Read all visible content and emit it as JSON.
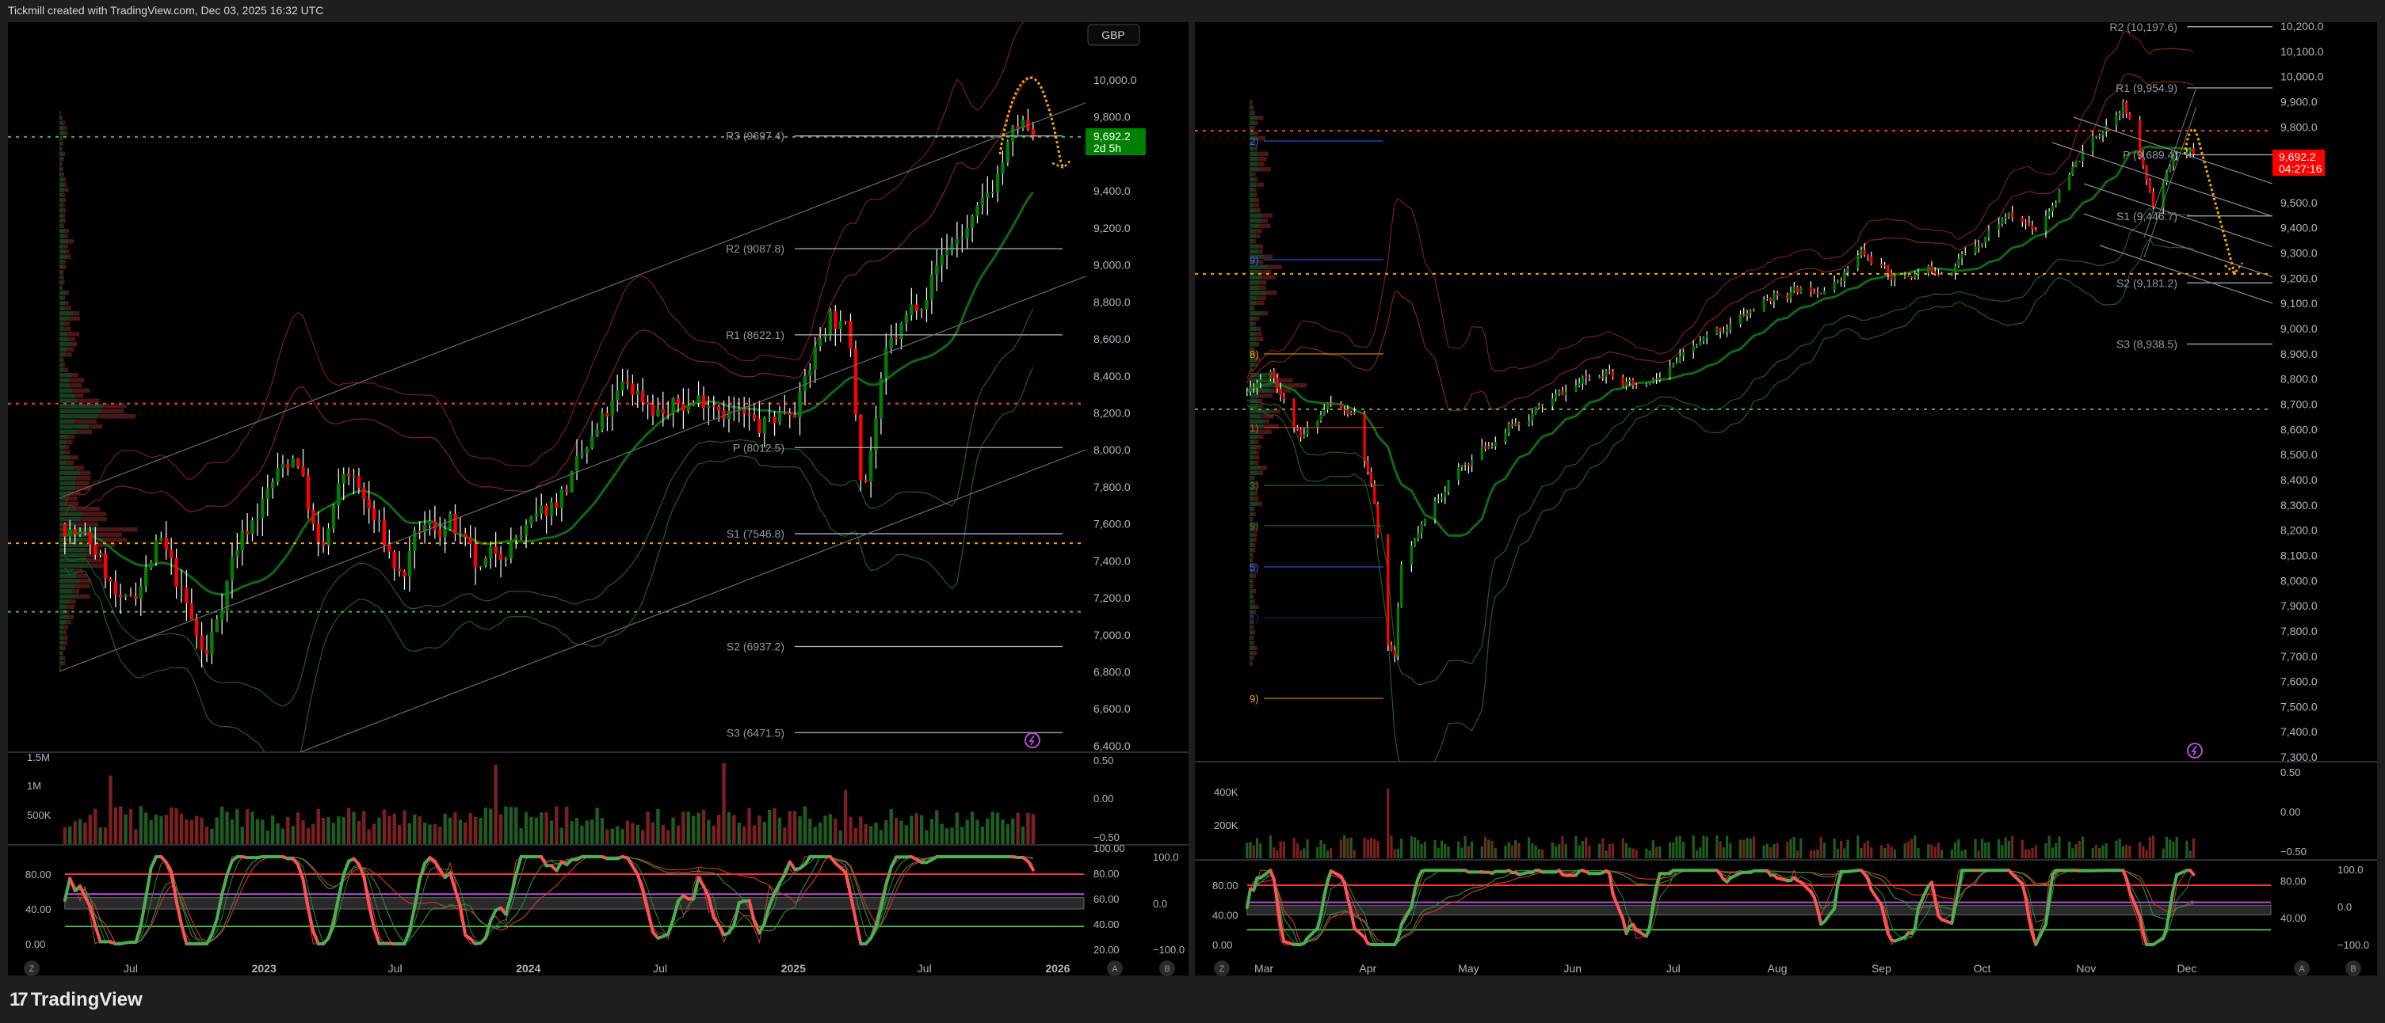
{
  "header": {
    "attribution": "Tickmill created with TradingView.com, Dec 03, 2025 16:32 UTC"
  },
  "footer": {
    "logo_text": "TradingView"
  },
  "scale_buttons": {
    "z": "Z",
    "a": "A",
    "b": "B"
  },
  "colors": {
    "up": "#008000",
    "down": "#ff0000",
    "background": "#000000",
    "frame": "#1e1e1e",
    "pivot_line": "#b2b5be",
    "forecast": "#ffa500",
    "osc_up": "#4caf50",
    "osc_down": "#ff5252"
  },
  "charts": [
    {
      "id": "weekly",
      "currency": "GBP",
      "last_price": "9,692.2",
      "countdown": "2d 5h",
      "badge_color": "#008000",
      "price_axis": [
        "10,000.0",
        "9,800.0",
        "9,400.0",
        "9,200.0",
        "9,000.0",
        "8,800.0",
        "8,600.0",
        "8,400.0",
        "8,200.0",
        "8,000.0",
        "7,800.0",
        "7,600.0",
        "7,400.0",
        "7,200.0",
        "7,000.0",
        "6,800.0",
        "6,600.0",
        "6,400.0"
      ],
      "time_axis": [
        {
          "label": "Jul",
          "date": "2022-07-01"
        },
        {
          "label": "2023",
          "date": "2023-01-01"
        },
        {
          "label": "Jul",
          "date": "2023-07-01"
        },
        {
          "label": "2024",
          "date": "2024-01-01"
        },
        {
          "label": "Jul",
          "date": "2024-07-01"
        },
        {
          "label": "2025",
          "date": "2025-01-01"
        },
        {
          "label": "Jul",
          "date": "2025-07-01"
        },
        {
          "label": "2026",
          "date": "2026-01-01"
        }
      ],
      "volume_axis_left": [
        "1.5M",
        "1M",
        "500K"
      ],
      "volume_axis_right": [
        "0.50",
        "0.00",
        "−0.50"
      ],
      "osc_axis_left": [
        "80.00",
        "40.00",
        "0.00"
      ],
      "osc_axis_right": [
        "100.00",
        "80.00",
        "60.00",
        "40.00",
        "20.00"
      ],
      "osc_axis_far": [
        "100.0",
        "0.0",
        "−100.0"
      ],
      "pivots": [
        {
          "label": "R3 (9697.4)",
          "value": 9697.4
        },
        {
          "label": "R2 (9087.8)",
          "value": 9087.8
        },
        {
          "label": "R1 (8622.1)",
          "value": 8622.1
        },
        {
          "label": "P (8012.5)",
          "value": 8012.5
        },
        {
          "label": "S1 (7546.8)",
          "value": 7546.8
        },
        {
          "label": "S2 (6937.2)",
          "value": 6937.2
        },
        {
          "label": "S3 (6471.5)",
          "value": 6471.5
        }
      ],
      "levels": [
        {
          "value": 8250,
          "color": "#ff3b3b"
        },
        {
          "value": 7495,
          "color": "#ffa500"
        },
        {
          "value": 7125,
          "color": "#4caf50"
        },
        {
          "value": 9692.2,
          "color": "#4caf50"
        }
      ],
      "price_path": [
        [
          "2022-04-01",
          7600
        ],
        [
          "2022-05-15",
          7450
        ],
        [
          "2022-06-20",
          7100
        ],
        [
          "2022-08-10",
          7500
        ],
        [
          "2022-09-10",
          7200
        ],
        [
          "2022-10-12",
          6850
        ],
        [
          "2022-11-20",
          7450
        ],
        [
          "2023-01-10",
          7800
        ],
        [
          "2023-02-15",
          8000
        ],
        [
          "2023-03-20",
          7400
        ],
        [
          "2023-04-25",
          7900
        ],
        [
          "2023-06-10",
          7550
        ],
        [
          "2023-07-10",
          7300
        ],
        [
          "2023-08-05",
          7550
        ],
        [
          "2023-09-15",
          7600
        ],
        [
          "2023-10-25",
          7300
        ],
        [
          "2023-12-01",
          7500
        ],
        [
          "2024-01-15",
          7600
        ],
        [
          "2024-03-10",
          7900
        ],
        [
          "2024-05-15",
          8350
        ],
        [
          "2024-07-10",
          8200
        ],
        [
          "2024-09-10",
          8300
        ],
        [
          "2024-11-15",
          8100
        ],
        [
          "2025-01-10",
          8300
        ],
        [
          "2025-02-20",
          8750
        ],
        [
          "2025-03-20",
          8600
        ],
        [
          "2025-04-07",
          7800
        ],
        [
          "2025-05-10",
          8500
        ],
        [
          "2025-06-20",
          8800
        ],
        [
          "2025-08-01",
          9100
        ],
        [
          "2025-09-15",
          9250
        ],
        [
          "2025-10-20",
          9600
        ],
        [
          "2025-11-10",
          9750
        ],
        [
          "2025-11-28",
          9692.2
        ]
      ]
    },
    {
      "id": "daily",
      "last_price": "9,692.2",
      "countdown": "04:27:16",
      "badge_color": "#ff0000",
      "price_axis": [
        "10,200.0",
        "10,100.0",
        "10,000.0",
        "9,900.0",
        "9,800.0",
        "9,500.0",
        "9,400.0",
        "9,300.0",
        "9,200.0",
        "9,100.0",
        "9,000.0",
        "8,900.0",
        "8,800.0",
        "8,700.0",
        "8,600.0",
        "8,500.0",
        "8,400.0",
        "8,300.0",
        "8,200.0",
        "8,100.0",
        "8,000.0",
        "7,900.0",
        "7,800.0",
        "7,700.0",
        "7,600.0",
        "7,500.0",
        "7,400.0",
        "7,300.0"
      ],
      "time_axis": [
        {
          "label": "Mar",
          "date": "2025-03-01"
        },
        {
          "label": "Apr",
          "date": "2025-04-01"
        },
        {
          "label": "May",
          "date": "2025-05-01"
        },
        {
          "label": "Jun",
          "date": "2025-06-01"
        },
        {
          "label": "Jul",
          "date": "2025-07-01"
        },
        {
          "label": "Aug",
          "date": "2025-08-01"
        },
        {
          "label": "Sep",
          "date": "2025-09-01"
        },
        {
          "label": "Oct",
          "date": "2025-10-01"
        },
        {
          "label": "Nov",
          "date": "2025-11-01"
        },
        {
          "label": "Dec",
          "date": "2025-12-01"
        }
      ],
      "volume_axis_left": [
        "400K",
        "200K"
      ],
      "volume_axis_right": [
        "0.50",
        "0.00",
        "−0.50"
      ],
      "osc_axis_left": [
        "80.00",
        "40.00",
        "0.00"
      ],
      "osc_axis_right": [
        "80.00",
        "40.00"
      ],
      "osc_axis_far": [
        "100.0",
        "0.0",
        "−100.0"
      ],
      "pivots": [
        {
          "label": "R2 (10,197.6)",
          "value": 10197.6
        },
        {
          "label": "R1 (9,954.9)",
          "value": 9954.9
        },
        {
          "label": "P (9,689.4)",
          "value": 9689.4
        },
        {
          "label": "S1 (9,446.7)",
          "value": 9446.7
        },
        {
          "label": "S2 (9,181.2)",
          "value": 9181.2
        },
        {
          "label": "S3 (8,938.5)",
          "value": 8938.5
        }
      ],
      "levels": [
        {
          "value": 9785,
          "color": "#ff3b3b"
        },
        {
          "value": 9217,
          "color": "#ffa500"
        },
        {
          "value": 8680,
          "color": "#4caf50"
        }
      ],
      "profile_labels": [
        {
          "label": "2)",
          "color": "#2962ff"
        },
        {
          "label": "9)",
          "color": "#2962ff"
        },
        {
          "label": "8)",
          "color": "#ffa500"
        },
        {
          "label": "1)",
          "color": "#ff3b3b"
        },
        {
          "label": "3)",
          "color": "#2e7d32"
        },
        {
          "label": "9)",
          "color": "#2e7d32"
        },
        {
          "label": "5)",
          "color": "#2962ff"
        },
        {
          "label": "7)",
          "color": "#1a237e"
        },
        {
          "label": "9)",
          "color": "#ffa500"
        }
      ],
      "price_path": [
        [
          "2025-02-24",
          8750
        ],
        [
          "2025-03-03",
          8850
        ],
        [
          "2025-03-12",
          8550
        ],
        [
          "2025-03-20",
          8700
        ],
        [
          "2025-03-28",
          8650
        ],
        [
          "2025-04-03",
          8300
        ],
        [
          "2025-04-07",
          7750
        ],
        [
          "2025-04-09",
          7700
        ],
        [
          "2025-04-11",
          8050
        ],
        [
          "2025-04-25",
          8400
        ],
        [
          "2025-05-12",
          8600
        ],
        [
          "2025-05-30",
          8750
        ],
        [
          "2025-06-12",
          8850
        ],
        [
          "2025-06-20",
          8750
        ],
        [
          "2025-06-27",
          8800
        ],
        [
          "2025-07-10",
          8950
        ],
        [
          "2025-07-31",
          9130
        ],
        [
          "2025-08-18",
          9180
        ],
        [
          "2025-08-26",
          9300
        ],
        [
          "2025-09-05",
          9200
        ],
        [
          "2025-09-22",
          9250
        ],
        [
          "2025-10-08",
          9450
        ],
        [
          "2025-10-17",
          9400
        ],
        [
          "2025-10-22",
          9500
        ],
        [
          "2025-11-03",
          9750
        ],
        [
          "2025-11-12",
          9900
        ],
        [
          "2025-11-21",
          9500
        ],
        [
          "2025-11-28",
          9700
        ],
        [
          "2025-12-03",
          9692.2
        ]
      ]
    }
  ]
}
